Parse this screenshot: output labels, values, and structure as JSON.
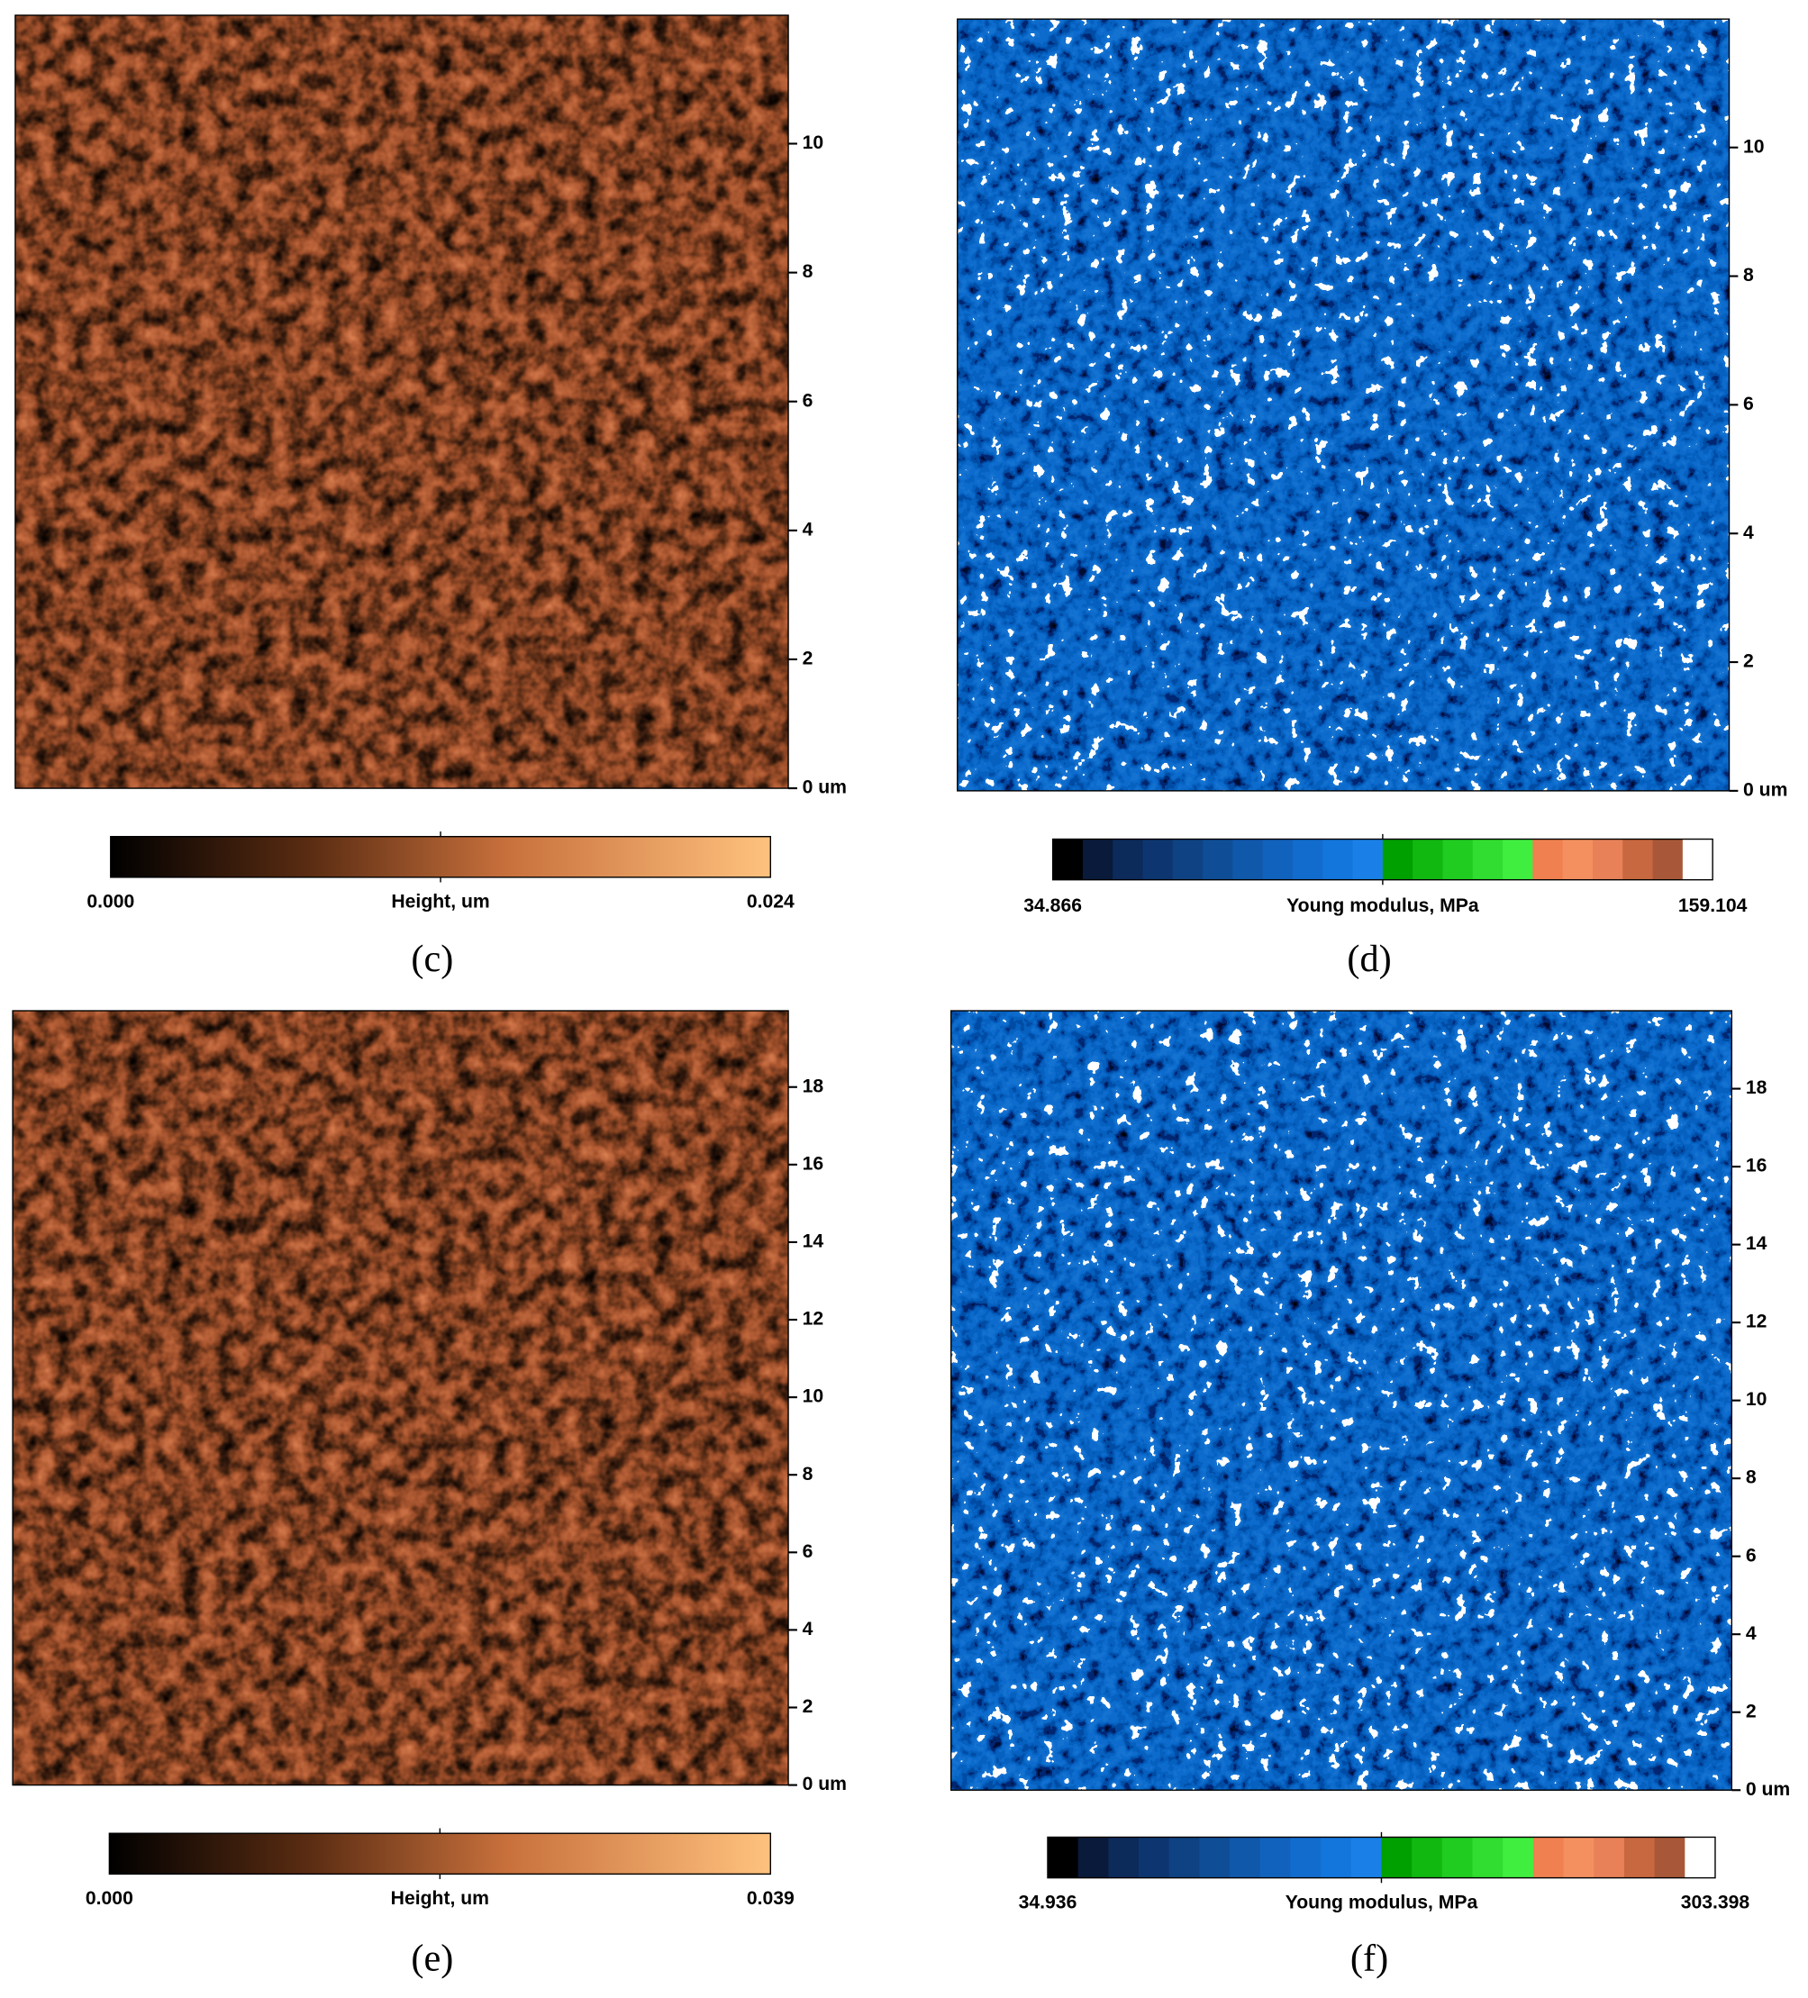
{
  "panels": [
    {
      "label": "(c)",
      "y_ticks": [
        "0 um",
        "2",
        "4",
        "6",
        "8",
        "10"
      ],
      "colorbar": {
        "min": "0.000",
        "title": "Height, um",
        "max": "0.024"
      }
    },
    {
      "label": "(d)",
      "y_ticks": [
        "0 um",
        "2",
        "4",
        "6",
        "8",
        "10"
      ],
      "colorbar": {
        "min": "34.866",
        "title": "Young modulus, MPa",
        "max": "159.104"
      }
    },
    {
      "label": "(e)",
      "y_ticks": [
        "0 um",
        "2",
        "4",
        "6",
        "8",
        "10",
        "12",
        "14",
        "16",
        "18"
      ],
      "colorbar": {
        "min": "0.000",
        "title": "Height, um",
        "max": "0.039"
      }
    },
    {
      "label": "(f)",
      "y_ticks": [
        "0 um",
        "2",
        "4",
        "6",
        "8",
        "10",
        "12",
        "14",
        "16",
        "18"
      ],
      "colorbar": {
        "min": "34.936",
        "title": "Young modulus, MPa",
        "max": "303.398"
      }
    }
  ]
}
